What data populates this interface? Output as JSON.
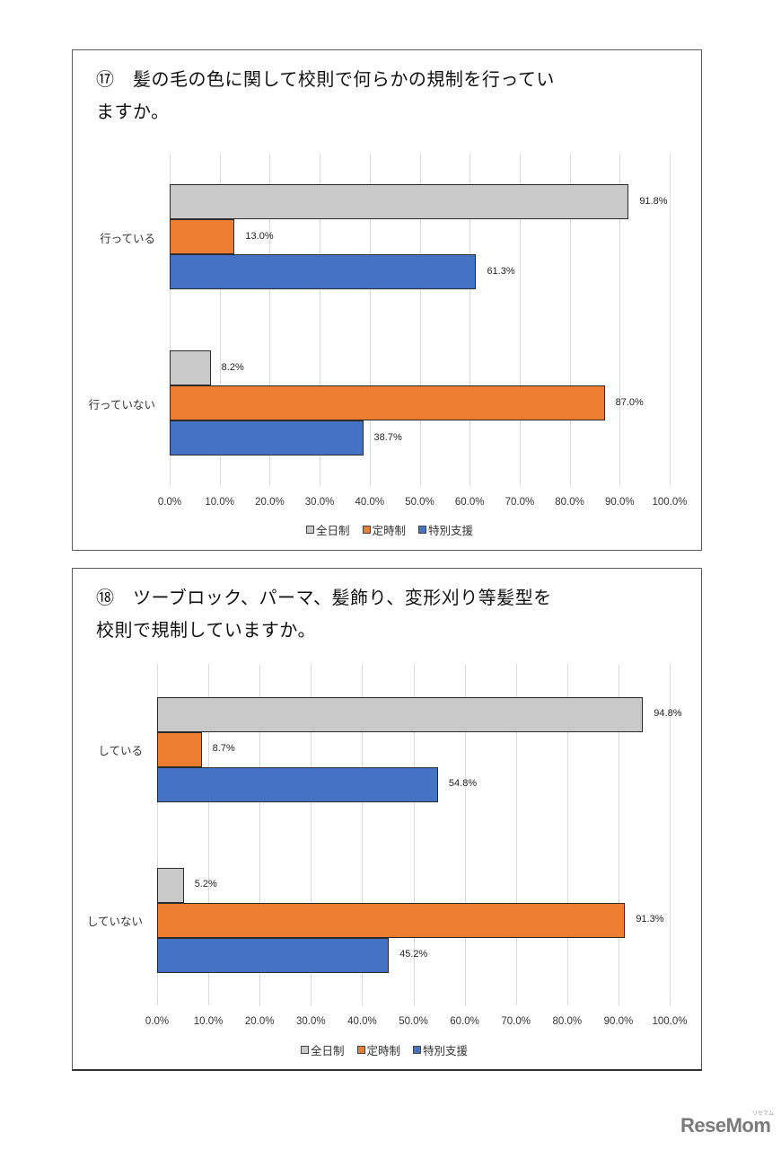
{
  "legend": [
    {
      "label": "全日制",
      "color": "#c9c9c9"
    },
    {
      "label": "定時制",
      "color": "#ed7d31"
    },
    {
      "label": "特別支援",
      "color": "#4472c4"
    }
  ],
  "x_ticks": [
    "0.0%",
    "10.0%",
    "20.0%",
    "30.0%",
    "40.0%",
    "50.0%",
    "60.0%",
    "70.0%",
    "80.0%",
    "90.0%",
    "100.0%"
  ],
  "watermark": {
    "logo": "ReseMom",
    "sub": "リセマム"
  },
  "charts": [
    {
      "title": "⑰　髪の毛の色に関して校則で何らかの規制を行ってい\nますか。",
      "categories": [
        {
          "label": "行っている",
          "values": [
            91.8,
            13.0,
            61.3
          ],
          "labels": [
            "91.8%",
            "13.0%",
            "61.3%"
          ]
        },
        {
          "label": "行っていない",
          "values": [
            8.2,
            87.0,
            38.7
          ],
          "labels": [
            "8.2%",
            "87.0%",
            "38.7%"
          ]
        }
      ]
    },
    {
      "title": "⑱　ツーブロック、パーマ、髪飾り、変形刈り等髪型を\n校則で規制していますか。",
      "categories": [
        {
          "label": "している",
          "values": [
            94.8,
            8.7,
            54.8
          ],
          "labels": [
            "94.8%",
            "8.7%",
            "54.8%"
          ]
        },
        {
          "label": "していない",
          "values": [
            5.2,
            91.3,
            45.2
          ],
          "labels": [
            "5.2%",
            "91.3%",
            "45.2%"
          ]
        }
      ]
    }
  ],
  "chart_data": [
    {
      "type": "bar",
      "orientation": "horizontal",
      "title": "⑰ 髪の毛の色に関して校則で何らかの規制を行っていますか。",
      "categories": [
        "行っている",
        "行っていない"
      ],
      "series": [
        {
          "name": "全日制",
          "values": [
            91.8,
            8.2
          ],
          "color": "#c9c9c9"
        },
        {
          "name": "定時制",
          "values": [
            13.0,
            87.0
          ],
          "color": "#ed7d31"
        },
        {
          "name": "特別支援",
          "values": [
            61.3,
            38.7
          ],
          "color": "#4472c4"
        }
      ],
      "xlabel": "",
      "ylabel": "",
      "xlim": [
        0,
        100
      ],
      "x_tick_labels": [
        "0.0%",
        "10.0%",
        "20.0%",
        "30.0%",
        "40.0%",
        "50.0%",
        "60.0%",
        "70.0%",
        "80.0%",
        "90.0%",
        "100.0%"
      ],
      "grid": true,
      "legend_position": "bottom",
      "data_labels": true
    },
    {
      "type": "bar",
      "orientation": "horizontal",
      "title": "⑱ ツーブロック、パーマ、髪飾り、変形刈り等髪型を校則で規制していますか。",
      "categories": [
        "している",
        "していない"
      ],
      "series": [
        {
          "name": "全日制",
          "values": [
            94.8,
            5.2
          ],
          "color": "#c9c9c9"
        },
        {
          "name": "定時制",
          "values": [
            8.7,
            91.3
          ],
          "color": "#ed7d31"
        },
        {
          "name": "特別支援",
          "values": [
            54.8,
            45.2
          ],
          "color": "#4472c4"
        }
      ],
      "xlabel": "",
      "ylabel": "",
      "xlim": [
        0,
        100
      ],
      "x_tick_labels": [
        "0.0%",
        "10.0%",
        "20.0%",
        "30.0%",
        "40.0%",
        "50.0%",
        "60.0%",
        "70.0%",
        "80.0%",
        "90.0%",
        "100.0%"
      ],
      "grid": true,
      "legend_position": "bottom",
      "data_labels": true
    }
  ]
}
